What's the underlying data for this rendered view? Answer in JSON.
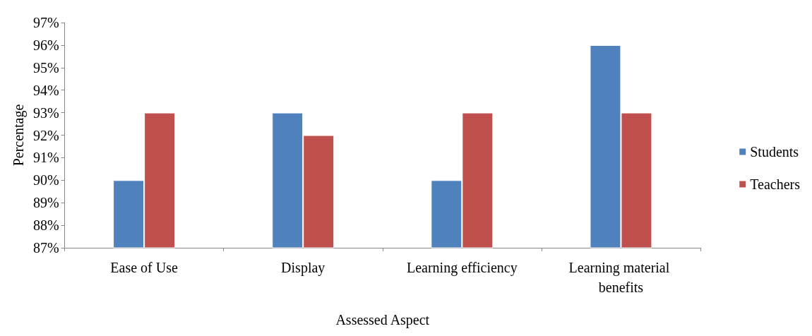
{
  "chart_data": {
    "type": "bar",
    "xlabel": "Assessed Aspect",
    "ylabel": "Percentage",
    "categories": [
      "Ease of Use",
      "Display",
      "Learning efficiency",
      "Learning material benefits"
    ],
    "series": [
      {
        "name": "Students",
        "color": "#4f81bd",
        "values": [
          90,
          93,
          90,
          96
        ]
      },
      {
        "name": "Teachers",
        "color": "#c0504d",
        "values": [
          93,
          92,
          93,
          93
        ]
      }
    ],
    "ylim": [
      87,
      97
    ],
    "yticks": [
      {
        "value": 87,
        "label": "87%"
      },
      {
        "value": 88,
        "label": "88%"
      },
      {
        "value": 89,
        "label": "89%"
      },
      {
        "value": 90,
        "label": "90%"
      },
      {
        "value": 91,
        "label": "91%"
      },
      {
        "value": 92,
        "label": "92%"
      },
      {
        "value": 93,
        "label": "93%"
      },
      {
        "value": 94,
        "label": "94%"
      },
      {
        "value": 95,
        "label": "95%"
      },
      {
        "value": 96,
        "label": "96%"
      },
      {
        "value": 97,
        "label": "97%"
      }
    ],
    "grid": false,
    "legend": "right"
  }
}
